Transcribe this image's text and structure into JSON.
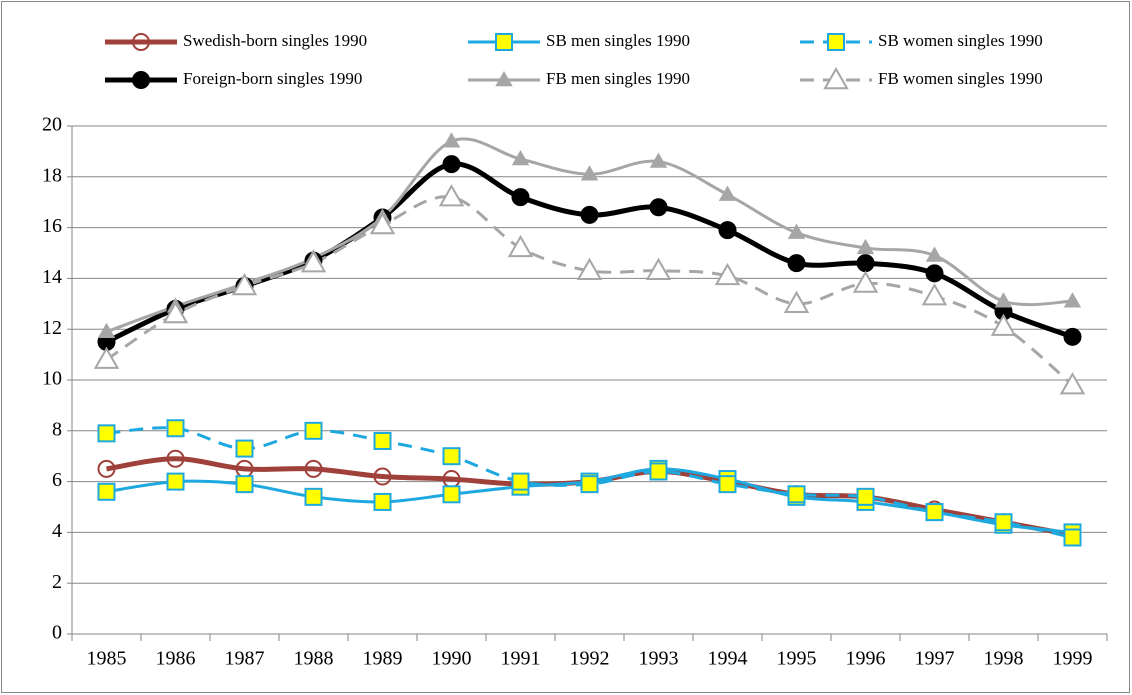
{
  "chart_data": {
    "type": "line",
    "categories": [
      "1985",
      "1986",
      "1987",
      "1988",
      "1989",
      "1990",
      "1991",
      "1992",
      "1993",
      "1994",
      "1995",
      "1996",
      "1997",
      "1998",
      "1999"
    ],
    "series": [
      {
        "name": "Swedish-born singles 1990",
        "color": "#a0403a",
        "dash": false,
        "width": 5,
        "marker": "circle",
        "marker_fill": "none",
        "marker_size": 8,
        "values": [
          6.5,
          6.9,
          6.5,
          6.5,
          6.2,
          6.1,
          5.9,
          6.0,
          6.4,
          6.0,
          5.5,
          5.4,
          4.9,
          4.4,
          3.9
        ]
      },
      {
        "name": "SB men singles 1990",
        "color": "#1ea8e0",
        "dash": false,
        "width": 3,
        "marker": "square",
        "marker_fill": "#ffff00",
        "marker_size": 8,
        "values": [
          5.6,
          6.0,
          5.9,
          5.4,
          5.2,
          5.5,
          5.8,
          6.0,
          6.5,
          6.1,
          5.4,
          5.2,
          4.8,
          4.3,
          4.0
        ]
      },
      {
        "name": "SB women singles 1990",
        "color": "#1ea8e0",
        "dash": true,
        "width": 3,
        "marker": "square",
        "marker_fill": "#ffff00",
        "marker_size": 8,
        "values": [
          7.9,
          8.1,
          7.3,
          8.0,
          7.6,
          7.0,
          6.0,
          5.9,
          6.4,
          5.9,
          5.5,
          5.4,
          4.8,
          4.4,
          3.8
        ]
      },
      {
        "name": "Foreign-born singles 1990",
        "color": "#000000",
        "dash": false,
        "width": 5,
        "marker": "circle",
        "marker_fill": "#000000",
        "marker_size": 8,
        "values": [
          11.5,
          12.8,
          13.7,
          14.7,
          16.4,
          18.5,
          17.2,
          16.5,
          16.8,
          15.9,
          14.6,
          14.6,
          14.2,
          12.7,
          11.7
        ]
      },
      {
        "name": "FB men singles 1990",
        "color": "#a6a6a6",
        "dash": false,
        "width": 3,
        "marker": "triangle",
        "marker_fill": "#a6a6a6",
        "marker_size": 7,
        "values": [
          11.9,
          12.9,
          13.8,
          14.8,
          16.4,
          19.4,
          18.7,
          18.1,
          18.6,
          17.3,
          15.8,
          15.2,
          14.9,
          13.1,
          13.1
        ]
      },
      {
        "name": "FB women singles 1990",
        "color": "#a6a6a6",
        "dash": true,
        "width": 3,
        "marker": "triangle",
        "marker_fill": "#ffffff",
        "marker_size": 11,
        "values": [
          10.8,
          12.6,
          13.7,
          14.6,
          16.1,
          17.2,
          15.2,
          14.3,
          14.3,
          14.1,
          13.0,
          13.8,
          13.3,
          12.1,
          9.8
        ]
      }
    ],
    "ylim": [
      0,
      20
    ],
    "yticks": [
      0,
      2,
      4,
      6,
      8,
      10,
      12,
      14,
      16,
      18,
      20
    ],
    "grid": true,
    "smooth": true,
    "legend": "top"
  }
}
